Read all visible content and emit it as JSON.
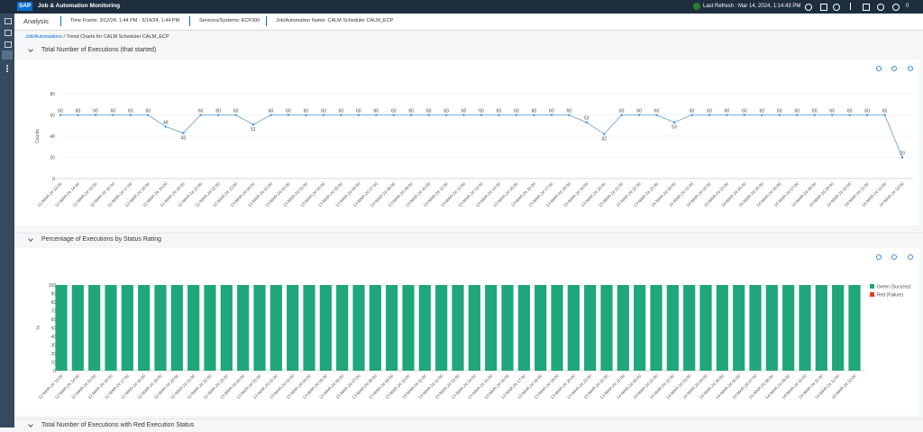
{
  "header": {
    "logo": "SAP",
    "title": "Job & Automation Monitoring",
    "last_refresh": "Last Refresh : Mar 14, 2024, 1:14:43 PM",
    "notification_count": "0"
  },
  "toolbar": {
    "title": "Analysis",
    "filters": [
      "Time Frame: 3/12/24, 1:44 PM - 3/14/24, 1:44 PM",
      "Services/Systems: ECP300",
      "Job/Automation Name: CALM Scheduler CALM_ECP"
    ]
  },
  "breadcrumb": {
    "link": "Job/Automations",
    "current": "/ Trend Charts for CALM Scheduler CALM_ECP"
  },
  "collapsed_section": {
    "title": "Total Number of Executions with Red Execution Status"
  },
  "chart_data": [
    {
      "type": "line",
      "title": "Total Number of Executions (that started)",
      "y_label": "Counts",
      "color": "#5b9bd5",
      "grid": true,
      "ylim": [
        0,
        80
      ],
      "yticks": [
        0,
        20,
        40,
        60,
        80
      ],
      "categories": [
        "12-MAR-24 13:00",
        "12-MAR-24 14:00",
        "12-MAR-24 15:00",
        "12-MAR-24 16:00",
        "12-MAR-24 17:00",
        "12-MAR-24 18:00",
        "12-MAR-24 19:00",
        "12-MAR-24 20:00",
        "12-MAR-24 21:00",
        "12-MAR-24 22:00",
        "12-MAR-24 23:00",
        "13-MAR-24 00:00",
        "13-MAR-24 01:00",
        "13-MAR-24 02:00",
        "13-MAR-24 03:00",
        "13-MAR-24 04:00",
        "13-MAR-24 05:00",
        "13-MAR-24 06:00",
        "13-MAR-24 07:00",
        "13-MAR-24 08:00",
        "13-MAR-24 09:00",
        "13-MAR-24 10:00",
        "13-MAR-24 11:00",
        "13-MAR-24 12:00",
        "13-MAR-24 13:00",
        "13-MAR-24 14:00",
        "13-MAR-24 15:00",
        "13-MAR-24 16:00",
        "13-MAR-24 17:00",
        "13-MAR-24 18:00",
        "13-MAR-24 19:00",
        "13-MAR-24 20:00",
        "13-MAR-24 21:00",
        "13-MAR-24 22:00",
        "13-MAR-24 23:00",
        "14-MAR-24 00:00",
        "14-MAR-24 01:00",
        "14-MAR-24 02:00",
        "14-MAR-24 03:00",
        "14-MAR-24 04:00",
        "14-MAR-24 05:00",
        "14-MAR-24 06:00",
        "14-MAR-24 07:00",
        "14-MAR-24 08:00",
        "14-MAR-24 09:00",
        "14-MAR-24 10:00",
        "14-MAR-24 11:00",
        "14-MAR-24 12:00",
        "14-MAR-24 13:00"
      ],
      "values": [
        60,
        60,
        60,
        60,
        60,
        60,
        49,
        43,
        60,
        60,
        60,
        51,
        60,
        60,
        60,
        60,
        60,
        60,
        60,
        60,
        60,
        60,
        60,
        60,
        60,
        60,
        60,
        60,
        60,
        60,
        53,
        42,
        60,
        60,
        60,
        53,
        60,
        60,
        60,
        60,
        60,
        60,
        60,
        60,
        60,
        60,
        60,
        60,
        20
      ]
    },
    {
      "type": "bar",
      "title": "Percentage of Executions by Status Rating",
      "y_label": "%",
      "grid": false,
      "legend": "right",
      "ylim": [
        0,
        100
      ],
      "yticks": [
        0,
        10,
        20,
        30,
        40,
        50,
        60,
        70,
        80,
        90,
        100
      ],
      "categories": [
        "12-MAR-24 13:00",
        "12-MAR-24 14:00",
        "12-MAR-24 15:00",
        "12-MAR-24 16:00",
        "12-MAR-24 17:00",
        "12-MAR-24 18:00",
        "12-MAR-24 19:00",
        "12-MAR-24 20:00",
        "12-MAR-24 21:00",
        "12-MAR-24 22:00",
        "12-MAR-24 23:00",
        "13-MAR-24 00:00",
        "13-MAR-24 01:00",
        "13-MAR-24 02:00",
        "13-MAR-24 03:00",
        "13-MAR-24 04:00",
        "13-MAR-24 05:00",
        "13-MAR-24 06:00",
        "13-MAR-24 07:00",
        "13-MAR-24 08:00",
        "13-MAR-24 09:00",
        "13-MAR-24 10:00",
        "13-MAR-24 11:00",
        "13-MAR-24 12:00",
        "13-MAR-24 13:00",
        "13-MAR-24 14:00",
        "13-MAR-24 15:00",
        "13-MAR-24 16:00",
        "13-MAR-24 17:00",
        "13-MAR-24 18:00",
        "13-MAR-24 19:00",
        "13-MAR-24 20:00",
        "13-MAR-24 21:00",
        "13-MAR-24 22:00",
        "13-MAR-24 23:00",
        "14-MAR-24 00:00",
        "14-MAR-24 01:00",
        "14-MAR-24 02:00",
        "14-MAR-24 03:00",
        "14-MAR-24 04:00",
        "14-MAR-24 05:00",
        "14-MAR-24 06:00",
        "14-MAR-24 07:00",
        "14-MAR-24 08:00",
        "14-MAR-24 09:00",
        "14-MAR-24 10:00",
        "14-MAR-24 11:00",
        "14-MAR-24 12:00",
        "14-MAR-24 13:00"
      ],
      "series": [
        {
          "name": "Green (Success)",
          "color": "#1fa67a",
          "values": [
            100,
            100,
            100,
            100,
            100,
            100,
            100,
            100,
            100,
            100,
            100,
            100,
            100,
            100,
            100,
            100,
            100,
            100,
            100,
            100,
            100,
            100,
            100,
            100,
            100,
            100,
            100,
            100,
            100,
            100,
            100,
            100,
            100,
            100,
            100,
            100,
            100,
            100,
            100,
            100,
            100,
            100,
            100,
            100,
            100,
            100,
            100,
            100,
            100
          ]
        },
        {
          "name": "Red (Failure)",
          "color": "#e0401c",
          "values": [
            0,
            0,
            0,
            0,
            0,
            0,
            0,
            0,
            0,
            0,
            0,
            0,
            0,
            0,
            0,
            0,
            0,
            0,
            0,
            0,
            0,
            0,
            0,
            0,
            0,
            0,
            0,
            0,
            0,
            0,
            0,
            0,
            0,
            0,
            0,
            0,
            0,
            0,
            0,
            0,
            0,
            0,
            0,
            0,
            0,
            0,
            0,
            0,
            0
          ]
        }
      ]
    }
  ]
}
